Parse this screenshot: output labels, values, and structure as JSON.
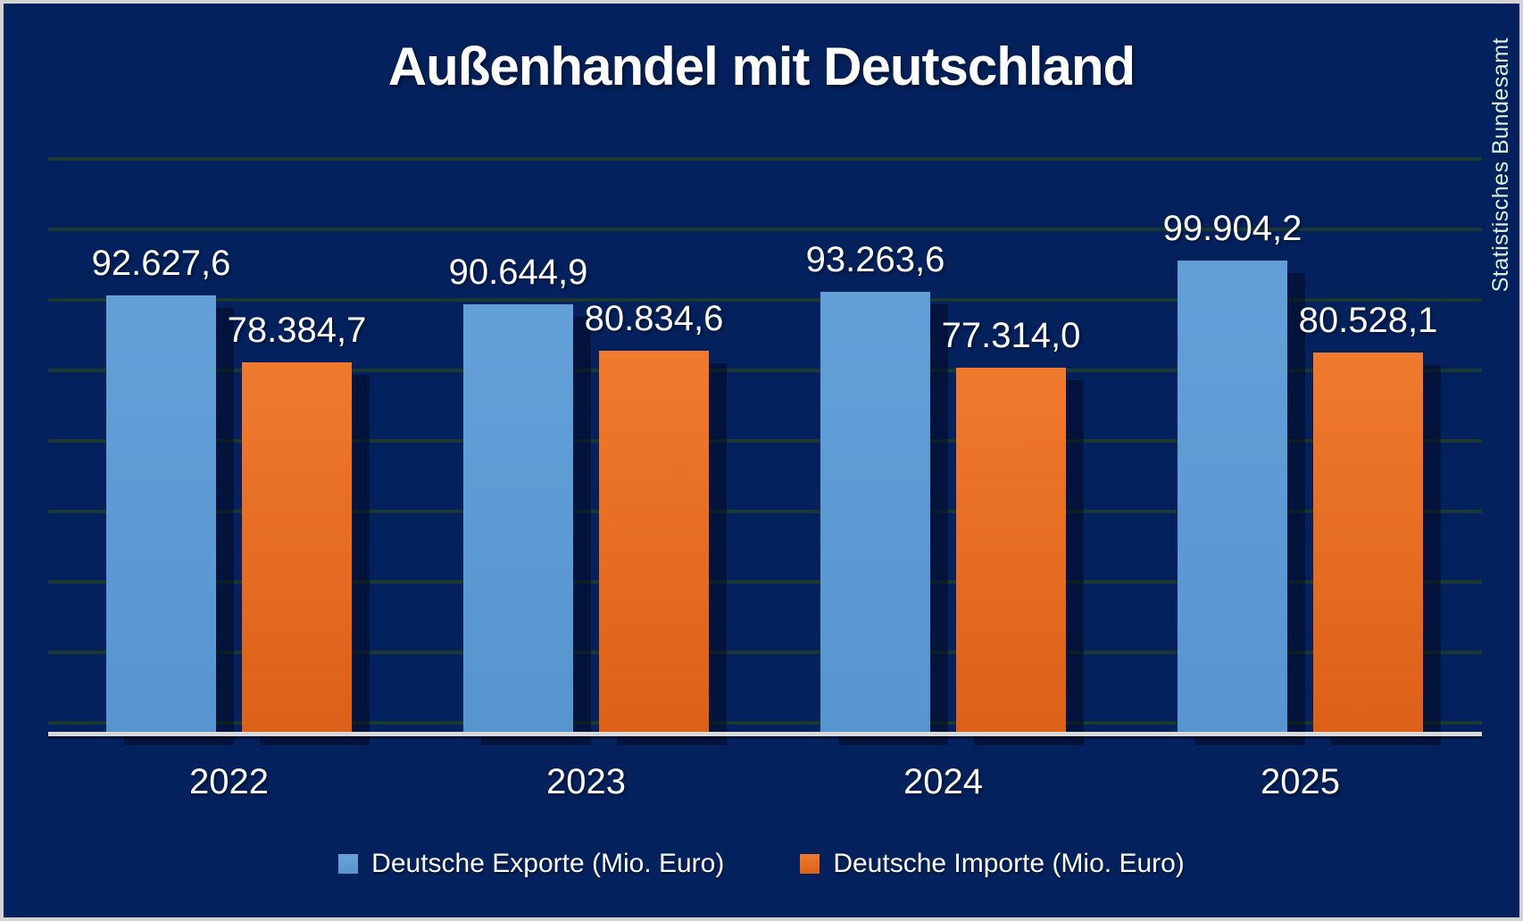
{
  "chart_data": {
    "type": "bar",
    "title": "Außenhandel mit Deutschland",
    "source": "Statistisches Bundesamt",
    "categories": [
      "2022",
      "2023",
      "2024",
      "2025"
    ],
    "series": [
      {
        "name": "Deutsche Exporte (Mio. Euro)",
        "values": [
          92627.6,
          90644.9,
          93263.6,
          99904.2
        ],
        "labels": [
          "92.627,6",
          "90.644,9",
          "93.263,6",
          "99.904,2"
        ],
        "color": "#5b9bd5"
      },
      {
        "name": "Deutsche Importe (Mio. Euro)",
        "values": [
          78384.7,
          80834.6,
          77314.0,
          80528.1
        ],
        "labels": [
          "78.384,7",
          "80.834,6",
          "77.314,0",
          "80.528,1"
        ],
        "color": "#e8671f"
      }
    ],
    "xlabel": "",
    "ylabel": "",
    "ylim": [
      0,
      105000
    ],
    "grid": true,
    "legend_position": "bottom"
  },
  "colors": {
    "background": "#03215c",
    "gridline": "#1c3832",
    "axis_line": "#d9d9d9",
    "title_text": "#ffffff",
    "value_text": "#ffffff",
    "source_text": "#d9f2e2",
    "exporte_bar": "#5b9bd5",
    "importe_bar": "#e8671f",
    "frame_border": "#d2d2d2"
  }
}
